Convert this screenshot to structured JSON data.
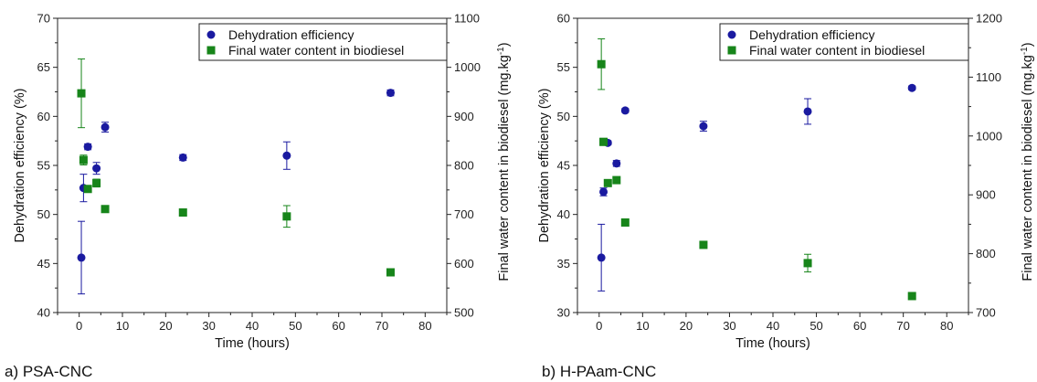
{
  "colors": {
    "dehydration": "#1a1aa0",
    "water": "#17851a",
    "axis": "#222222"
  },
  "chart_data": [
    {
      "type": "scatter",
      "caption": "a) PSA-CNC",
      "xlabel": "Time (hours)",
      "ylabel_left": "Dehydration efficiency (%)",
      "ylabel_right_main": "Final water content in biodiesel (mg.kg",
      "ylabel_right_sup": "-1",
      "ylabel_right_tail": ")",
      "xlim": [
        -5,
        85
      ],
      "ylim_left": [
        40,
        70
      ],
      "ylim_right": [
        500,
        1100
      ],
      "xticks": [
        0,
        10,
        20,
        30,
        40,
        50,
        60,
        70,
        80
      ],
      "yticks_left": [
        40,
        45,
        50,
        55,
        60,
        65,
        70
      ],
      "yticks_right": [
        500,
        600,
        700,
        800,
        900,
        1000,
        1100
      ],
      "legend": {
        "dehydration": "Dehydration efficiency",
        "water": "Final water content in biodiesel"
      },
      "series": [
        {
          "name": "Dehydration efficiency",
          "axis": "left",
          "marker": "circle",
          "color_key": "dehydration",
          "x": [
            0.5,
            1,
            2,
            4,
            6,
            24,
            48,
            72
          ],
          "y": [
            45.6,
            52.7,
            56.9,
            54.7,
            58.9,
            55.8,
            56.0,
            62.4
          ],
          "err": [
            3.7,
            1.4,
            0.3,
            0.6,
            0.5,
            0.3,
            1.4,
            0.3
          ]
        },
        {
          "name": "Final water content in biodiesel",
          "axis": "right",
          "marker": "square",
          "color_key": "water",
          "x": [
            0.5,
            1,
            2,
            4,
            6,
            24,
            48,
            72
          ],
          "y": [
            947,
            811,
            752,
            764,
            711,
            704,
            696,
            582
          ],
          "err": [
            70,
            10,
            2,
            8,
            5,
            3,
            22,
            3
          ]
        }
      ]
    },
    {
      "type": "scatter",
      "caption": "b) H-PAam-CNC",
      "xlabel": "Time (hours)",
      "ylabel_left": "Dehydration efficiency (%)",
      "ylabel_right_main": "Final water content in biodiesel (mg.kg",
      "ylabel_right_sup": "-1",
      "ylabel_right_tail": ")",
      "xlim": [
        -5,
        85
      ],
      "ylim_left": [
        30,
        60
      ],
      "ylim_right": [
        700,
        1200
      ],
      "xticks": [
        0,
        10,
        20,
        30,
        40,
        50,
        60,
        70,
        80
      ],
      "yticks_left": [
        30,
        35,
        40,
        45,
        50,
        55,
        60
      ],
      "yticks_right": [
        700,
        800,
        900,
        1000,
        1100,
        1200
      ],
      "legend": {
        "dehydration": "Dehydration efficiency",
        "water": "Final water content in biodiesel"
      },
      "series": [
        {
          "name": "Dehydration efficiency",
          "axis": "left",
          "marker": "circle",
          "color_key": "dehydration",
          "x": [
            0.5,
            1,
            2,
            4,
            6,
            24,
            48,
            72
          ],
          "y": [
            35.6,
            42.3,
            47.3,
            45.2,
            50.6,
            49.0,
            50.5,
            52.9
          ],
          "err": [
            3.4,
            0.4,
            0.2,
            0.3,
            0.2,
            0.5,
            1.3,
            0.2
          ]
        },
        {
          "name": "Final water content in biodiesel",
          "axis": "right",
          "marker": "square",
          "color_key": "water",
          "x": [
            0.5,
            1,
            2,
            4,
            6,
            24,
            48,
            72
          ],
          "y": [
            1122,
            990,
            920,
            925,
            853,
            815,
            784,
            728
          ],
          "err": [
            43,
            6,
            3,
            3,
            3,
            5,
            15,
            2
          ]
        }
      ]
    }
  ]
}
